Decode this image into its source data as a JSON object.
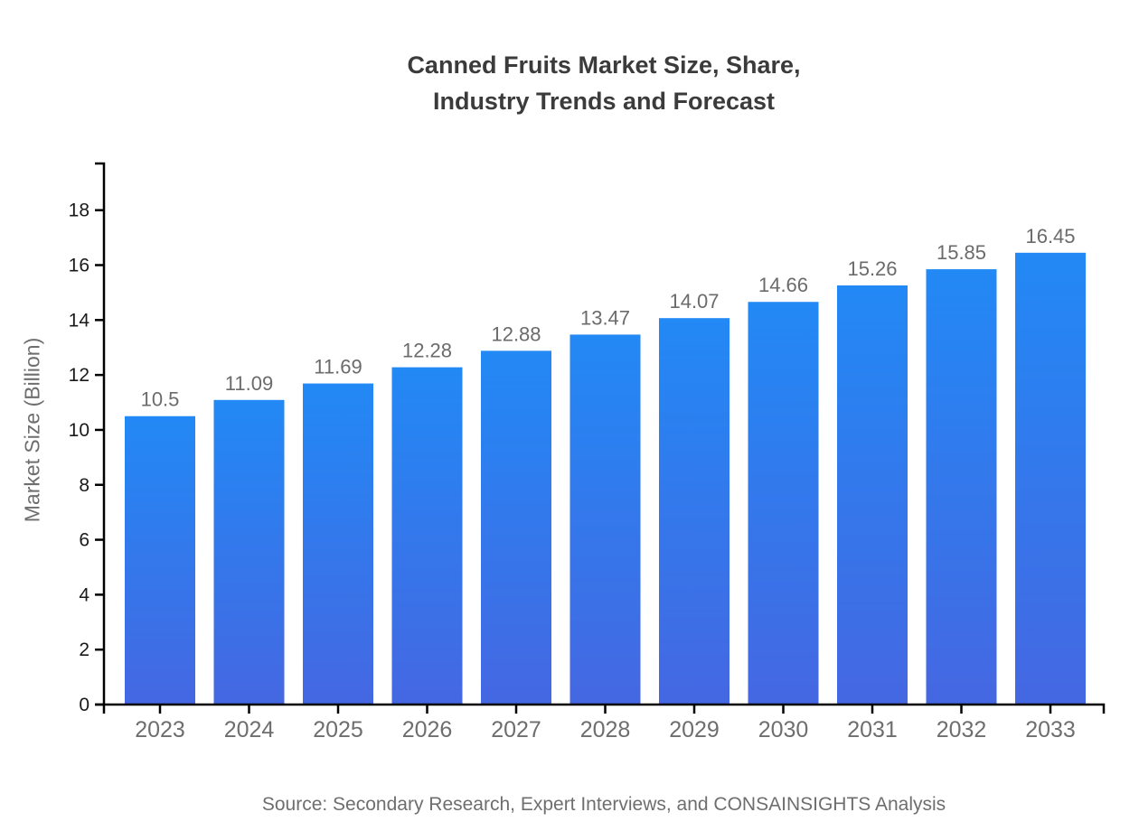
{
  "title": {
    "line1": "Canned Fruits Market Size, Share,",
    "line2": "Industry Trends and Forecast"
  },
  "source_note": "Source: Secondary Research, Expert Interviews, and CONSAINSIGHTS Analysis",
  "chart_data": {
    "type": "bar",
    "title": "Canned Fruits Market Size, Share, Industry Trends and Forecast",
    "xlabel": "",
    "ylabel": "Market Size (Billion)",
    "categories": [
      "2023",
      "2024",
      "2025",
      "2026",
      "2027",
      "2028",
      "2029",
      "2030",
      "2031",
      "2032",
      "2033"
    ],
    "values": [
      10.5,
      11.09,
      11.69,
      12.28,
      12.88,
      13.47,
      14.07,
      14.66,
      15.26,
      15.85,
      16.45
    ],
    "value_labels": [
      "10.5",
      "11.09",
      "11.69",
      "12.28",
      "12.88",
      "13.47",
      "14.07",
      "14.66",
      "15.26",
      "15.85",
      "16.45"
    ],
    "ylim": [
      0,
      19.7
    ],
    "yticks": [
      0,
      2,
      4,
      6,
      8,
      10,
      12,
      14,
      16,
      18
    ],
    "grid": false,
    "legend": "none",
    "colors": {
      "bar_gradient_top": "#2289f5",
      "bar_gradient_bottom": "#4567e2",
      "axis": "#000000",
      "ytick_label": "#1a1a1a",
      "xtick_label": "#6e6e6e",
      "value_label": "#6b6b6b",
      "title": "#3b3b3b",
      "source": "#6e6e6e",
      "ylabel": "#6e6e6e"
    }
  }
}
